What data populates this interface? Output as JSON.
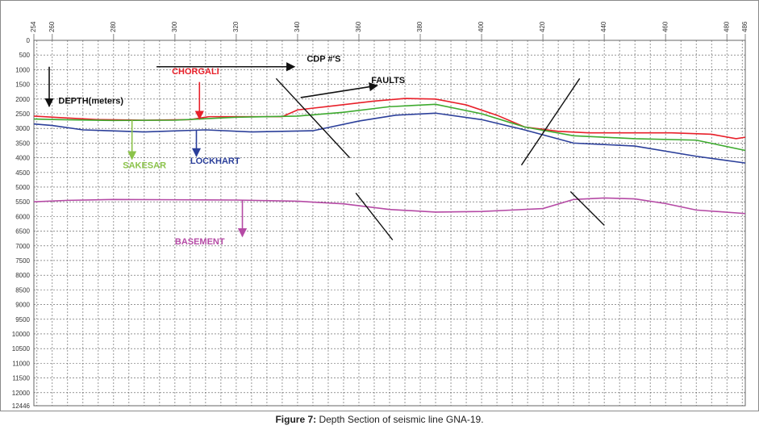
{
  "chart_data": {
    "type": "line",
    "x_ticks": [
      254,
      260,
      280,
      300,
      320,
      340,
      360,
      380,
      400,
      420,
      440,
      460,
      480,
      486
    ],
    "y_ticks": [
      0,
      500,
      1000,
      1500,
      2000,
      2500,
      3000,
      3500,
      4000,
      4500,
      5000,
      5500,
      6000,
      6500,
      7000,
      7500,
      8000,
      8500,
      9000,
      9500,
      10000,
      10500,
      11000,
      11500,
      12000,
      12446
    ],
    "xlim": [
      254,
      486
    ],
    "ylim": [
      0,
      12446
    ],
    "y_inverted": true,
    "grid": true,
    "series": [
      {
        "name": "CHORGALI",
        "color": "#e8202a",
        "x": [
          254,
          262,
          275,
          290,
          305,
          311,
          320,
          335,
          340,
          350,
          365,
          375,
          385,
          395,
          405,
          414,
          425,
          435,
          448,
          462,
          475,
          483,
          486
        ],
        "y": [
          2580,
          2630,
          2700,
          2720,
          2700,
          2600,
          2600,
          2600,
          2370,
          2250,
          2070,
          1980,
          2000,
          2200,
          2550,
          2950,
          3100,
          3150,
          3150,
          3150,
          3200,
          3350,
          3300
        ]
      },
      {
        "name": "SAKESAR",
        "color": "#3daa2e",
        "x": [
          254,
          262,
          280,
          300,
          320,
          340,
          355,
          370,
          385,
          400,
          414,
          430,
          450,
          470,
          486
        ],
        "y": [
          2680,
          2700,
          2730,
          2720,
          2620,
          2580,
          2450,
          2260,
          2180,
          2500,
          2950,
          3250,
          3350,
          3400,
          3750
        ]
      },
      {
        "name": "LOCKHART",
        "color": "#2b3f9a",
        "x": [
          254,
          260,
          270,
          290,
          310,
          325,
          345,
          360,
          372,
          385,
          400,
          414,
          430,
          440,
          450,
          470,
          486
        ],
        "y": [
          2850,
          2900,
          3050,
          3120,
          3050,
          3120,
          3080,
          2750,
          2550,
          2480,
          2700,
          3050,
          3500,
          3550,
          3600,
          3950,
          4180
        ]
      },
      {
        "name": "BASEMENT",
        "color": "#b54aa5",
        "x": [
          254,
          265,
          280,
          300,
          320,
          340,
          355,
          370,
          385,
          400,
          410,
          420,
          430,
          440,
          450,
          460,
          470,
          486
        ],
        "y": [
          5500,
          5450,
          5420,
          5430,
          5440,
          5480,
          5570,
          5760,
          5850,
          5830,
          5780,
          5730,
          5420,
          5370,
          5400,
          5560,
          5780,
          5900
        ]
      }
    ],
    "faults": [
      {
        "x": [
          333,
          357
        ],
        "y": [
          1300,
          4000
        ]
      },
      {
        "x": [
          359,
          371
        ],
        "y": [
          5200,
          6800
        ]
      },
      {
        "x": [
          413,
          432
        ],
        "y": [
          4250,
          1300
        ]
      },
      {
        "x": [
          429,
          440
        ],
        "y": [
          5150,
          6300
        ]
      }
    ],
    "annotations": [
      {
        "text": "CDP #'S",
        "color": "#111111",
        "x": 343,
        "y": 730,
        "arrow_from": [
          294,
          900
        ],
        "arrow_to": [
          339,
          900
        ]
      },
      {
        "text": "DEPTH(meters)",
        "color": "#111111",
        "x": 262,
        "y": 2150,
        "arrow_from": [
          259,
          900
        ],
        "arrow_to": [
          259,
          2250
        ]
      },
      {
        "text": "FAULTS",
        "color": "#111111",
        "x": 364,
        "y": 1450,
        "arrow_from": [
          341,
          1950
        ],
        "arrow_to": [
          366,
          1540
        ]
      },
      {
        "text": "CHORGALI",
        "color": "#e8202a",
        "x": 299,
        "y": 1150,
        "arrow_from": [
          308,
          1420
        ],
        "arrow_to": [
          308,
          2680
        ]
      },
      {
        "text": "SAKESAR",
        "color": "#8bc34a",
        "x": 283,
        "y": 4350,
        "arrow_from": [
          286,
          2720
        ],
        "arrow_to": [
          286,
          4050
        ]
      },
      {
        "text": "LOCKHART",
        "color": "#2b3f9a",
        "x": 305,
        "y": 4200,
        "arrow_from": [
          307,
          3050
        ],
        "arrow_to": [
          307,
          3950
        ]
      },
      {
        "text": "BASEMENT",
        "color": "#b54aa5",
        "x": 300,
        "y": 6950,
        "arrow_from": [
          322,
          5450
        ],
        "arrow_to": [
          322,
          6680
        ]
      }
    ]
  },
  "caption": {
    "label": "Figure 7:",
    "text": " Depth Section of seismic line GNA-19."
  },
  "colors": {
    "frame": "#8a8a8a",
    "grid": "#555555",
    "axis_text": "#333333"
  }
}
